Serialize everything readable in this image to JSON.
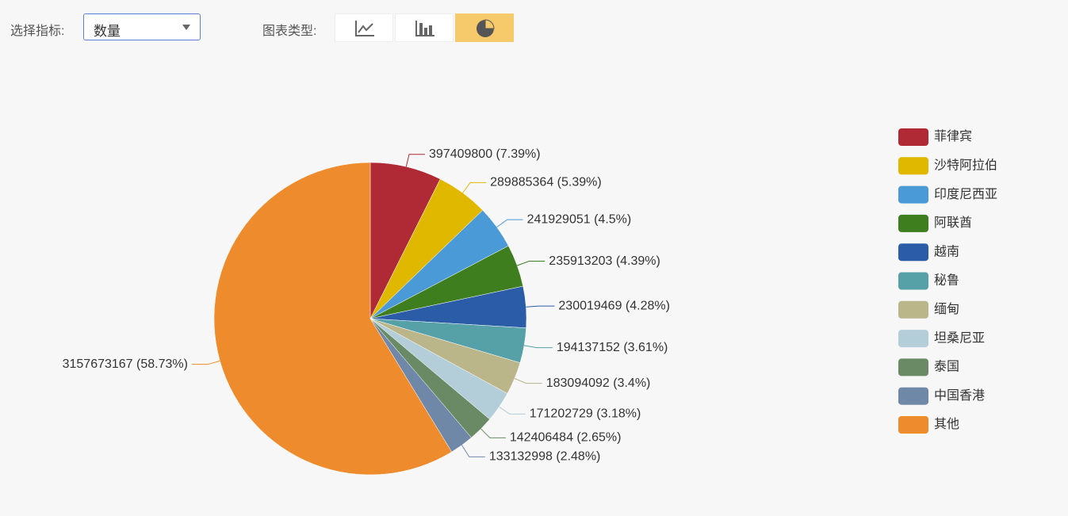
{
  "controls": {
    "indicator_label": "选择指标:",
    "indicator_value": "数量",
    "chart_type_label": "图表类型:"
  },
  "chart_data": {
    "type": "pie",
    "categories": [
      "菲律宾",
      "沙特阿拉伯",
      "印度尼西亚",
      "阿联酋",
      "越南",
      "秘鲁",
      "缅甸",
      "坦桑尼亚",
      "泰国",
      "中国香港",
      "其他"
    ],
    "values": [
      397409800,
      289885364,
      241929051,
      235913203,
      230019469,
      194137152,
      183094092,
      171202729,
      142406484,
      133132998,
      3157673167
    ],
    "value_labels": [
      "397409800 (7.39%)",
      "289885364 (5.39%)",
      "241929051 (4.5%)",
      "235913203 (4.39%)",
      "230019469 (4.28%)",
      "194137152 (3.61%)",
      "183094092 (3.4%)",
      "171202729 (3.18%)",
      "142406484 (2.65%)",
      "133132998 (2.48%)",
      "3157673167 (58.73%)"
    ],
    "colors": [
      "#b02a36",
      "#e0b800",
      "#4a9ad8",
      "#3f7e1e",
      "#2b5ca8",
      "#56a0a8",
      "#bbb58a",
      "#b3cdd9",
      "#6a8a66",
      "#7088a8",
      "#ee8b2c"
    ],
    "legend": "right"
  }
}
